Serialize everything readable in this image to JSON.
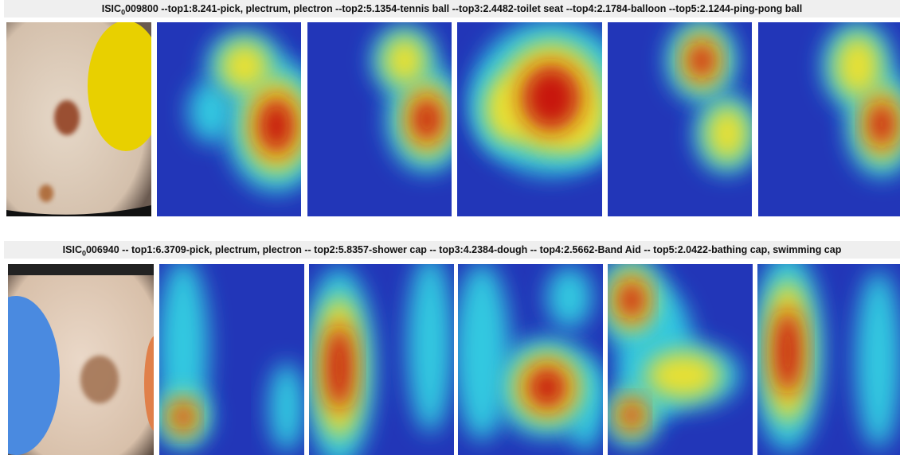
{
  "rows": [
    {
      "title": {
        "prefix": "ISIC",
        "subscript": "0",
        "text": "009800 --top1:8.241-pick, plectrum, plectron --top2:5.1354-tennis ball --top3:2.4482-toilet seat --top4:2.1784-balloon --top5:2.1244-ping-pong ball"
      }
    },
    {
      "title": {
        "prefix": "ISIC",
        "subscript": "0",
        "text": "006940 -- top1:6.3709-pick, plectrum, plectron -- top2:5.8357-shower cap -- top3:4.2384-dough -- top4:2.5662-Band Aid -- top5:2.0422-bathing cap, swimming cap"
      }
    }
  ]
}
